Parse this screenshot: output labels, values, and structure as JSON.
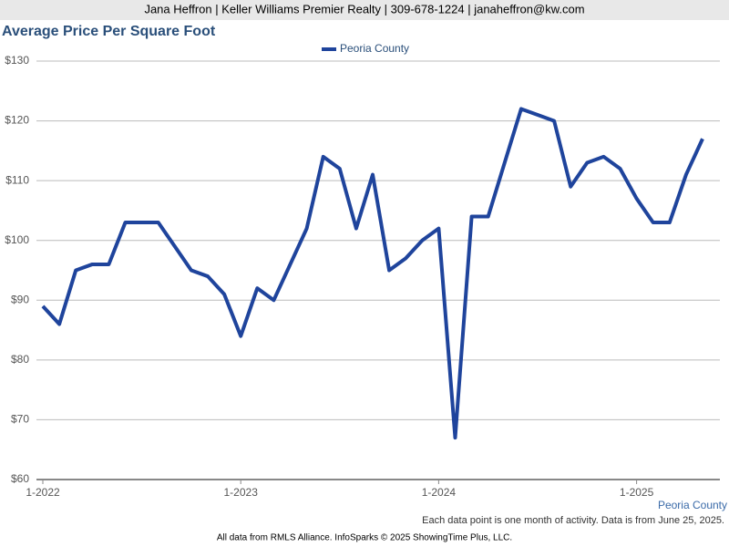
{
  "header": "Jana Heffron | Keller Williams Premier Realty | 309-678-1224 | janaheffron@kw.com",
  "chart_data": {
    "type": "line",
    "title": "Average Price Per Square Foot",
    "categories": [
      "1-2022",
      null,
      null,
      null,
      null,
      null,
      null,
      null,
      null,
      null,
      null,
      null,
      "1-2023",
      null,
      null,
      null,
      null,
      null,
      null,
      null,
      null,
      null,
      null,
      null,
      "1-2024",
      null,
      null,
      null,
      null,
      null,
      null,
      null,
      null,
      null,
      null,
      null,
      "1-2025",
      null,
      null,
      null,
      null
    ],
    "series": [
      {
        "name": "Peoria County",
        "color": "#1f449c",
        "values": [
          89,
          86,
          95,
          96,
          96,
          103,
          103,
          103,
          99,
          95,
          94,
          91,
          84,
          92,
          90,
          96,
          102,
          114,
          112,
          102,
          111,
          95,
          97,
          100,
          102,
          67,
          104,
          104,
          113,
          122,
          121,
          120,
          109,
          113,
          114,
          112,
          107,
          103,
          103,
          111,
          117
        ]
      }
    ],
    "ylim": [
      60,
      130
    ],
    "yticks": [
      {
        "value": 60,
        "label": "$60"
      },
      {
        "value": 70,
        "label": "$70"
      },
      {
        "value": 80,
        "label": "$80"
      },
      {
        "value": 90,
        "label": "$90"
      },
      {
        "value": 100,
        "label": "$100"
      },
      {
        "value": 110,
        "label": "$110"
      },
      {
        "value": 120,
        "label": "$120"
      },
      {
        "value": 130,
        "label": "$130"
      }
    ],
    "grid": true,
    "legend": "top"
  },
  "note": "Each data point is one month of activity. Data is from June 25, 2025.",
  "footer": "All data from RMLS Alliance. InfoSparks © 2025 ShowingTime Plus, LLC."
}
